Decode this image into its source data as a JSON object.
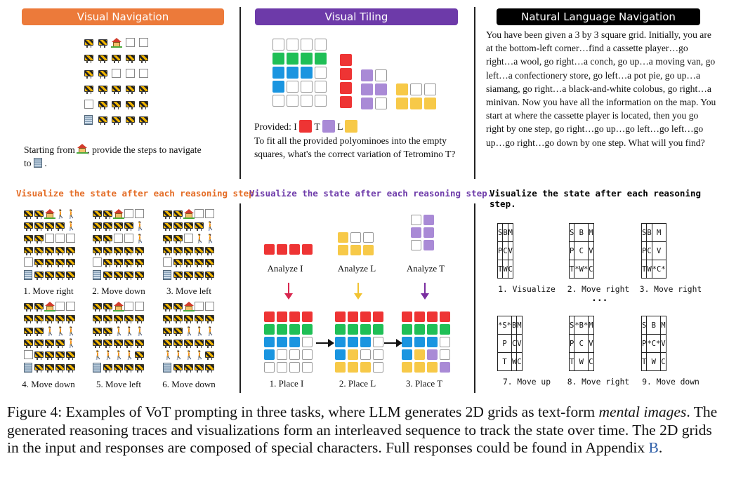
{
  "panels": {
    "nav": {
      "header": "Visual Navigation",
      "header_color": "#ec7a3a",
      "prompt_before": "Starting from",
      "prompt_mid": ", provide the steps to navigate",
      "prompt_to": "to",
      "prompt_end": ".",
      "viz_label": "Visualize the state after each reasoning step.",
      "viz_color": "#e46c25",
      "steps": [
        "1. Move right",
        "2. Move down",
        "3. Move left",
        "4. Move down",
        "5. Move left",
        "6. Move down"
      ]
    },
    "tiling": {
      "header": "Visual Tiling",
      "header_color": "#6d3aa9",
      "provided_label": "Provided:",
      "piece_i": "I",
      "piece_t": "T",
      "piece_l": "L",
      "question": "To fit all the provided polyominoes into the empty squares, what's the correct variation of Tetromino T?",
      "viz_label": "Visualize the state after each reasoning step.",
      "viz_color": "#6d3aa9",
      "analyze": [
        "Analyze I",
        "Analyze L",
        "Analyze T"
      ],
      "place": [
        "1. Place I",
        "2. Place L",
        "3. Place T"
      ],
      "colors": {
        "red": "#ee3434",
        "green": "#1fbf56",
        "blue": "#1a95e0",
        "purple": "#a98ad6",
        "yellow": "#f7c948",
        "arrow_red": "#d8264e",
        "arrow_yellow": "#f2c331",
        "arrow_purple": "#7a2ea0"
      }
    },
    "nl": {
      "header": "Natural Language Navigation",
      "header_color": "#000000",
      "text": "You have been given a 3 by 3 square grid. Initially, you are at the bottom-left corner…find a cassette player…go right…a wool, go right…a conch, go up…a moving van, go left…a confectionery store, go left…a pot pie, go up…a siamang, go right…a black-and-white colobus, go right…a minivan. Now you have all the information on the map. You start at where the cassette player is located, then you go right by one step, go right…go up…go left…go left…go up…go right…go down by one step. What will you find?",
      "viz_label": "Visualize the state after each reasoning step.",
      "viz_color": "#000000",
      "ellipsis": "...",
      "grids": [
        {
          "caption": "1. Visualize",
          "cells": [
            "S",
            "B",
            "M",
            "P",
            "C",
            "V",
            "T",
            "W",
            "C"
          ]
        },
        {
          "caption": "2. Move right",
          "cells": [
            "S",
            "B",
            "M",
            "P",
            "C",
            "V",
            "T",
            "*W*",
            "C"
          ]
        },
        {
          "caption": "3. Move right",
          "cells": [
            "S",
            "B",
            "M",
            "P",
            "C",
            "V",
            "T",
            "W",
            "*C*"
          ]
        },
        {
          "caption": "7. Move up",
          "cells": [
            "*S*",
            "B",
            "M",
            "P",
            "C",
            "V",
            "T",
            "W",
            "C"
          ]
        },
        {
          "caption": "8. Move right",
          "cells": [
            "S",
            "*B*",
            "M",
            "P",
            "C",
            "V",
            "T",
            "W",
            "C"
          ]
        },
        {
          "caption": "9. Move down",
          "cells": [
            "S",
            "B",
            "M",
            "P",
            "*C*",
            "V",
            "T",
            "W",
            "C"
          ]
        }
      ]
    }
  },
  "caption": {
    "label": "Figure 4:",
    "text1": "Examples of VoT prompting in three tasks, where LLM generates 2D grids as text-form",
    "italic": "mental images",
    "text2": ". The generated reasoning traces and visualizations form an interleaved sequence to track the state over time. The 2D grids in the input and responses are composed of special characters. Full responses could be found in Appendix",
    "appendix": "B",
    "appendix_color": "#2f5fa8",
    "end": "."
  }
}
